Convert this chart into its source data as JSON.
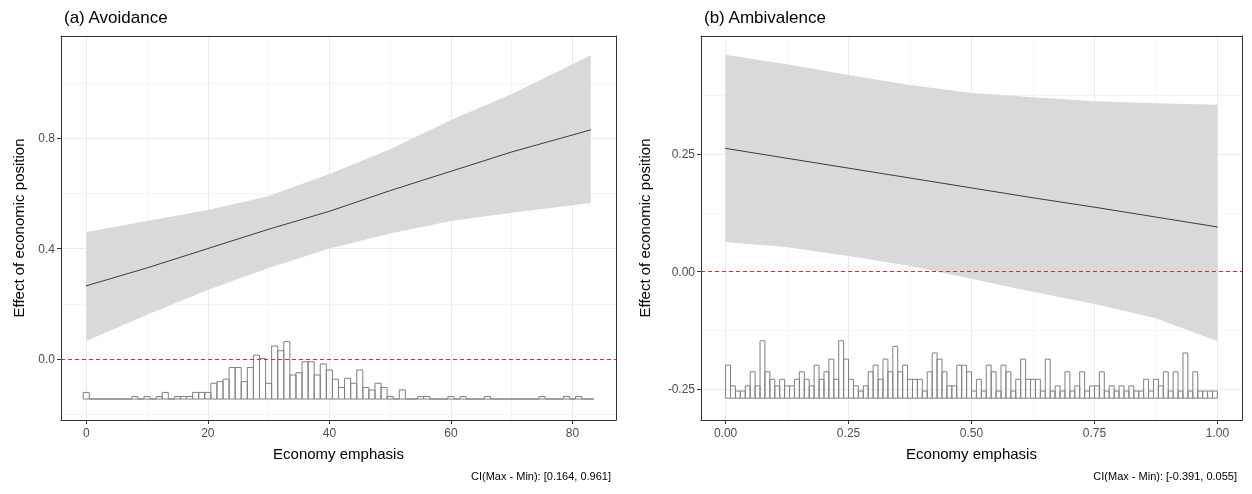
{
  "chart_data": [
    {
      "type": "line",
      "title": "(a) Avoidance",
      "xlabel": "Economy emphasis",
      "ylabel": "Effect of economic position",
      "annotations": [
        "CI(Max - Min): [0.164, 0.961]"
      ],
      "xlim": [
        -4.15,
        87.15
      ],
      "ylim": [
        -0.221,
        1.17
      ],
      "xticks": [
        0,
        20,
        40,
        60,
        80
      ],
      "yticks": [
        {
          "value": 0,
          "label": "0.0"
        },
        0.4,
        0.8
      ],
      "grid": true,
      "ref_lines": [
        {
          "axis": "y",
          "value": 0,
          "color": "#c0392b",
          "line_style": "dashed"
        }
      ],
      "series": [
        {
          "type": "histogram",
          "color": "#808080",
          "base": [
            -0.145,
            -0.145,
            -0.145,
            -0.145,
            -0.145,
            -0.145,
            -0.145,
            -0.145,
            -0.145,
            -0.145,
            -0.145,
            -0.145,
            -0.145,
            -0.145,
            -0.145,
            -0.145,
            -0.145,
            -0.145,
            -0.145,
            -0.145,
            -0.145,
            -0.145,
            -0.145,
            -0.145,
            -0.145,
            -0.145,
            -0.145,
            -0.145,
            -0.145,
            -0.145,
            -0.145,
            -0.145,
            -0.145,
            -0.145,
            -0.145,
            -0.145,
            -0.145,
            -0.145,
            -0.145,
            -0.145,
            -0.145,
            -0.145,
            -0.145,
            -0.145,
            -0.145,
            -0.145,
            -0.145,
            -0.145,
            -0.145,
            -0.145,
            -0.145,
            -0.145,
            -0.145,
            -0.145,
            -0.145,
            -0.145,
            -0.145,
            -0.145,
            -0.145,
            -0.145,
            -0.145,
            -0.145,
            -0.145,
            -0.145,
            -0.145,
            -0.145,
            -0.145,
            -0.145,
            -0.145,
            -0.145,
            -0.145,
            -0.145,
            -0.145,
            -0.145,
            -0.145,
            -0.145,
            -0.145,
            -0.145,
            -0.145,
            -0.145,
            -0.145,
            -0.145,
            -0.145,
            -0.145
          ],
          "bins": [
            -0.5,
            0.5,
            1.5,
            2.5,
            3.5,
            4.5,
            5.5,
            6.5,
            7.5,
            8.5,
            9.5,
            10.5,
            11.5,
            12.5,
            13.5,
            14.5,
            15.5,
            16.5,
            17.5,
            18.5,
            19.5,
            20.5,
            21.5,
            22.5,
            23.5,
            24.5,
            25.5,
            26.5,
            27.5,
            28.5,
            29.5,
            30.5,
            31.5,
            32.5,
            33.5,
            34.5,
            35.5,
            36.5,
            37.5,
            38.5,
            39.5,
            40.5,
            41.5,
            42.5,
            43.5,
            44.5,
            45.5,
            46.5,
            47.5,
            48.5,
            49.5,
            50.5,
            51.5,
            52.5,
            53.5,
            54.5,
            55.5,
            56.5,
            57.5,
            58.5,
            59.5,
            60.5,
            61.5,
            62.5,
            63.5,
            64.5,
            65.5,
            66.5,
            67.5,
            68.5,
            69.5,
            70.5,
            71.5,
            72.5,
            73.5,
            74.5,
            75.5,
            76.5,
            77.5,
            78.5,
            79.5,
            80.5,
            81.5,
            82.5,
            83.5
          ],
          "values": [
            0.024,
            0,
            0,
            0,
            0,
            0,
            0,
            0,
            0.009,
            0,
            0.009,
            0,
            0.009,
            0.024,
            0,
            0.009,
            0.009,
            0.009,
            0.024,
            0.024,
            0.024,
            0.057,
            0.063,
            0.072,
            0.114,
            0.114,
            0.063,
            0.114,
            0.159,
            0.147,
            0.057,
            0.192,
            0.175,
            0.208,
            0.087,
            0.095,
            0.135,
            0.135,
            0.087,
            0.127,
            0.105,
            0.072,
            0.042,
            0.075,
            0.057,
            0.105,
            0.042,
            0.033,
            0.057,
            0.042,
            0.009,
            0,
            0.033,
            0,
            0,
            0.009,
            0.009,
            0,
            0,
            0,
            0.009,
            0,
            0.009,
            0,
            0,
            0,
            0.009,
            0,
            0,
            0,
            0,
            0,
            0,
            0,
            0,
            0.009,
            0,
            0,
            0,
            0.009,
            0,
            0.009,
            0,
            0
          ]
        },
        {
          "color": "#3a3a3a",
          "x": [
            0,
            10,
            20,
            30,
            40,
            50,
            60,
            70,
            83
          ],
          "values": [
            0.265,
            0.33,
            0.4,
            0.47,
            0.535,
            0.61,
            0.68,
            0.75,
            0.83
          ],
          "lower": [
            0.065,
            0.16,
            0.25,
            0.33,
            0.4,
            0.455,
            0.5,
            0.53,
            0.565
          ],
          "upper": [
            0.46,
            0.5,
            0.54,
            0.59,
            0.67,
            0.76,
            0.866,
            0.96,
            1.1
          ]
        }
      ]
    },
    {
      "type": "line",
      "title": "(b) Ambivalence",
      "xlabel": "Economy emphasis",
      "ylabel": "Effect of economic position",
      "annotations": [
        "CI(Max - Min): [-0.391, 0.055]"
      ],
      "xlim": [
        -0.05,
        1.05
      ],
      "ylim": [
        -0.3155,
        0.501
      ],
      "xticks": [
        {
          "value": 0,
          "label": "0.00"
        },
        0.25,
        {
          "value": 0.5,
          "label": "0.50"
        },
        0.75,
        {
          "value": 1,
          "label": "1.00"
        }
      ],
      "yticks": [
        -0.25,
        {
          "value": 0,
          "label": "0.00"
        },
        0.25
      ],
      "grid": true,
      "ref_lines": [
        {
          "axis": "y",
          "value": 0,
          "color": "#c0392b",
          "line_style": "dashed"
        }
      ],
      "series": [
        {
          "type": "histogram",
          "color": "#808080",
          "base": [
            -0.269,
            -0.269,
            -0.269,
            -0.269,
            -0.269,
            -0.269,
            -0.269,
            -0.269,
            -0.269,
            -0.269,
            -0.269,
            -0.269,
            -0.269,
            -0.269,
            -0.269,
            -0.269,
            -0.269,
            -0.269,
            -0.269,
            -0.269,
            -0.269,
            -0.269,
            -0.269,
            -0.269,
            -0.269,
            -0.269,
            -0.269,
            -0.269,
            -0.269,
            -0.269,
            -0.269,
            -0.269,
            -0.269,
            -0.269,
            -0.269,
            -0.269,
            -0.269,
            -0.269,
            -0.269,
            -0.269,
            -0.269,
            -0.269,
            -0.269,
            -0.269,
            -0.269,
            -0.269,
            -0.269,
            -0.269,
            -0.269,
            -0.269,
            -0.269,
            -0.269,
            -0.269,
            -0.269,
            -0.269,
            -0.269,
            -0.269,
            -0.269,
            -0.269,
            -0.269,
            -0.269,
            -0.269,
            -0.269,
            -0.269,
            -0.269,
            -0.269,
            -0.269,
            -0.269,
            -0.269,
            -0.269,
            -0.269,
            -0.269,
            -0.269,
            -0.269,
            -0.269,
            -0.269,
            -0.269,
            -0.269,
            -0.269,
            -0.269,
            -0.269,
            -0.269,
            -0.269,
            -0.269,
            -0.269,
            -0.269,
            -0.269,
            -0.269,
            -0.269,
            -0.269,
            -0.269,
            -0.269,
            -0.269,
            -0.269,
            -0.269,
            -0.269,
            -0.269,
            -0.269,
            -0.269,
            -0.269
          ],
          "bins": [
            0,
            0.01,
            0.02,
            0.03,
            0.04,
            0.05,
            0.06,
            0.07,
            0.08,
            0.09,
            0.1,
            0.11,
            0.12,
            0.13,
            0.14,
            0.15,
            0.16,
            0.17,
            0.18,
            0.19,
            0.2,
            0.21,
            0.22,
            0.23,
            0.24,
            0.25,
            0.26,
            0.27,
            0.28,
            0.29,
            0.3,
            0.31,
            0.32,
            0.33,
            0.34,
            0.35,
            0.36,
            0.37,
            0.38,
            0.39,
            0.4,
            0.41,
            0.42,
            0.43,
            0.44,
            0.45,
            0.46,
            0.47,
            0.48,
            0.49,
            0.5,
            0.51,
            0.52,
            0.53,
            0.54,
            0.55,
            0.56,
            0.57,
            0.58,
            0.59,
            0.6,
            0.61,
            0.62,
            0.63,
            0.64,
            0.65,
            0.66,
            0.67,
            0.68,
            0.69,
            0.7,
            0.71,
            0.72,
            0.73,
            0.74,
            0.75,
            0.76,
            0.77,
            0.78,
            0.79,
            0.8,
            0.81,
            0.82,
            0.83,
            0.84,
            0.85,
            0.86,
            0.87,
            0.88,
            0.89,
            0.9,
            0.91,
            0.92,
            0.93,
            0.94,
            0.95,
            0.96,
            0.97,
            0.98,
            0.99,
            1
          ],
          "values": [
            0.07,
            0.026,
            0.015,
            0.015,
            0.026,
            0.056,
            0.026,
            0.122,
            0.056,
            0.04,
            0.026,
            0.04,
            0.026,
            0.026,
            0.04,
            0.056,
            0.04,
            0.026,
            0.07,
            0.04,
            0.056,
            0.083,
            0.04,
            0.122,
            0.083,
            0.04,
            0.026,
            0.015,
            0.026,
            0.056,
            0.07,
            0.04,
            0.083,
            0.056,
            0.11,
            0.056,
            0.07,
            0.04,
            0.04,
            0.04,
            0.015,
            0.056,
            0.096,
            0.083,
            0.056,
            0.026,
            0.026,
            0.07,
            0.07,
            0.056,
            0.015,
            0.04,
            0.015,
            0.07,
            0.056,
            0.015,
            0.07,
            0.056,
            0.015,
            0.04,
            0.083,
            0.04,
            0.04,
            0.04,
            0.015,
            0.083,
            0.015,
            0.026,
            0.015,
            0.056,
            0.015,
            0.026,
            0.056,
            0.015,
            0.026,
            0.026,
            0.056,
            0.015,
            0.026,
            0.015,
            0.026,
            0.015,
            0.026,
            0.015,
            0.015,
            0.04,
            0.015,
            0.04,
            0.026,
            0.056,
            0.015,
            0.056,
            0.015,
            0.096,
            0.015,
            0.056,
            0.015,
            0.015,
            0.015,
            0.015
          ]
        },
        {
          "color": "#3a3a3a",
          "x": [
            0,
            0.125,
            0.25,
            0.375,
            0.5,
            0.625,
            0.75,
            0.875,
            1
          ],
          "values": [
            0.262,
            0.241,
            0.22,
            0.199,
            0.178,
            0.157,
            0.137,
            0.116,
            0.095
          ],
          "lower": [
            0.063,
            0.052,
            0.033,
            0.012,
            -0.015,
            -0.043,
            -0.069,
            -0.099,
            -0.148
          ],
          "upper": [
            0.461,
            0.441,
            0.418,
            0.397,
            0.38,
            0.371,
            0.362,
            0.358,
            0.355
          ]
        }
      ]
    }
  ]
}
